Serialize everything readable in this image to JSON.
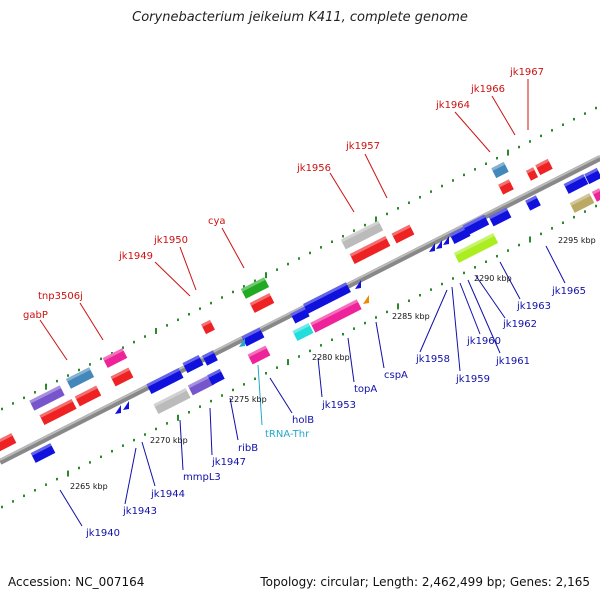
{
  "title": "Corynebacterium jeikeium K411, complete genome",
  "footer": {
    "accession": "Accession: NC_007164",
    "summary": "Topology: circular; Length: 2,462,499 bp; Genes: 2,165"
  },
  "colors": {
    "top_label": "#cc1111",
    "bottom_label": "#1010aa",
    "trna_label": "#22aacc",
    "backbone": "#888888",
    "ticks": "#2a8a2a"
  },
  "scale_labels": [
    "2265 kbp",
    "2270 kbp",
    "2275 kbp",
    "2280 kbp",
    "2285 kbp",
    "2290 kbp",
    "2295 kbp"
  ],
  "top_labels": [
    "gabP",
    "tnp3506j",
    "jk1949",
    "jk1950",
    "cya",
    "jk1956",
    "jk1957",
    "jk1964",
    "jk1966",
    "jk1967"
  ],
  "bottom_labels": [
    "jk1940",
    "jk1943",
    "jk1944",
    "mmpL3",
    "jk1947",
    "ribB",
    "holB",
    "jk1953",
    "topA",
    "cspA",
    "jk1958",
    "jk1959",
    "jk1960",
    "jk1961",
    "jk1962",
    "jk1963",
    "jk1965"
  ],
  "trna_label": "tRNA-Thr"
}
